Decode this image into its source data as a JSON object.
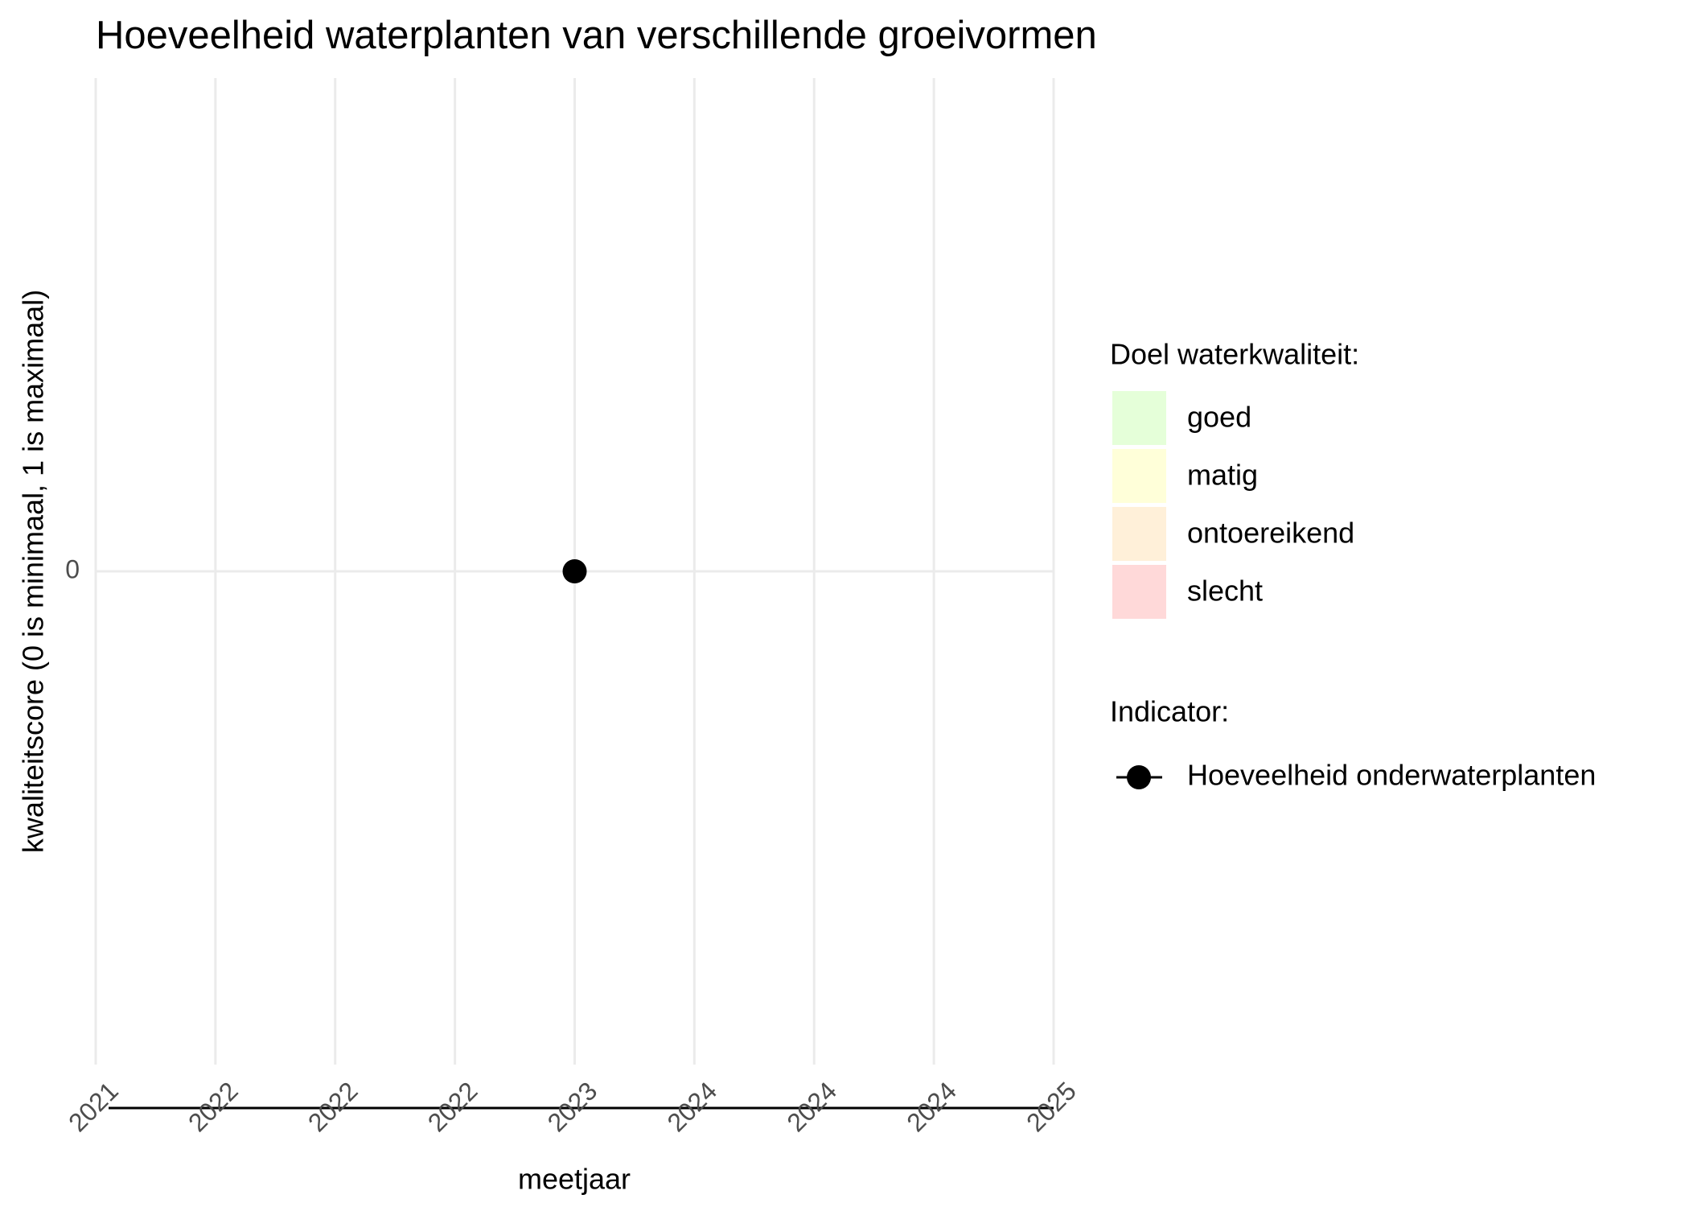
{
  "chart_data": {
    "type": "line",
    "title": "Hoeveelheid waterplanten van verschillende groeivormen",
    "x_label": "meetjaar",
    "y_label": "kwaliteitscore (0 is minimaal, 1 is maximaal)",
    "x": [
      2023
    ],
    "series": [
      {
        "name": "Hoeveelheid onderwaterplanten",
        "color": "#000000",
        "values": [
          0
        ]
      }
    ],
    "xlim": [
      2021,
      2025
    ],
    "xticks": [
      2021,
      {
        "value": 2021.5,
        "label": "2022"
      },
      2022,
      {
        "value": 2022.5,
        "label": "2022"
      },
      2023,
      {
        "value": 2023.5,
        "label": "2024"
      },
      2024,
      {
        "value": 2024.5,
        "label": "2024"
      },
      2025
    ],
    "ylim": [
      -0.05,
      0.05
    ],
    "yticks": [
      0
    ],
    "grid": true,
    "quality_legend_title": "Doel waterkwaliteit:",
    "quality_classes": [
      {
        "label": "goed",
        "color": "#e5ffd9"
      },
      {
        "label": "matig",
        "color": "#ffffd9"
      },
      {
        "label": "ontoereikend",
        "color": "#fff0d9"
      },
      {
        "label": "slecht",
        "color": "#ffd9d9"
      }
    ],
    "series_legend_title": "Indicator:",
    "legend_position": "right"
  }
}
